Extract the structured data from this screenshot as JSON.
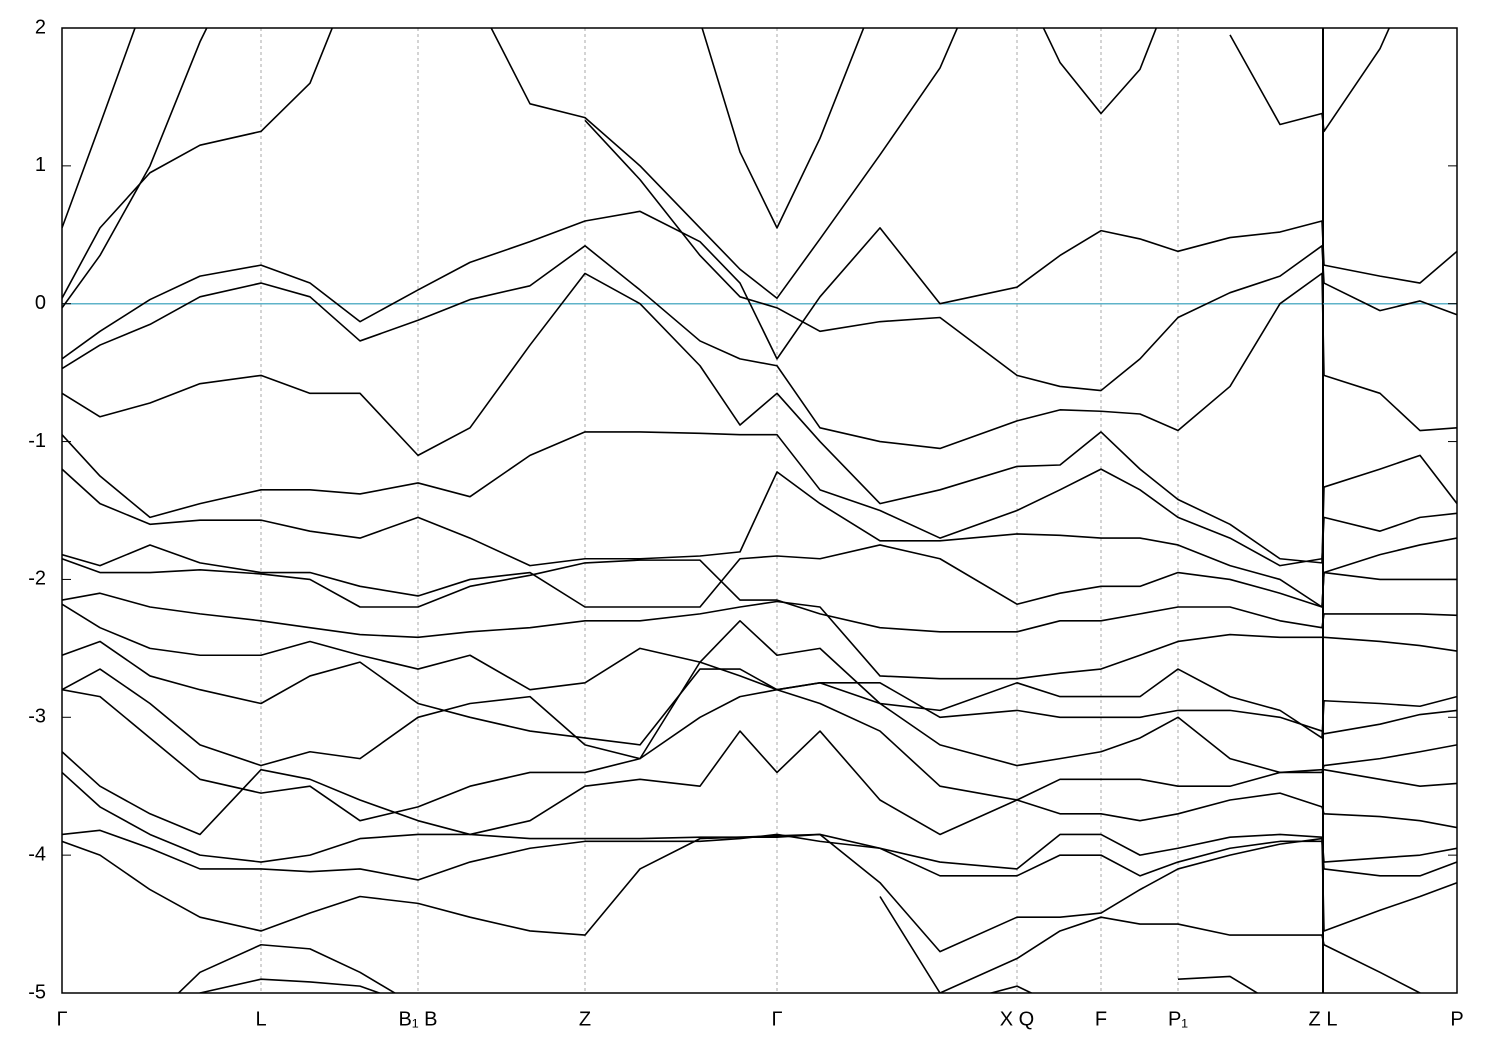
{
  "chart_data": {
    "type": "line",
    "x": [
      0,
      0.38,
      0.88,
      1.38,
      1.99,
      2.48,
      2.98,
      3.56,
      4.08,
      4.68,
      5.23,
      5.78,
      6.38,
      6.78,
      7.15,
      7.58,
      8.18,
      8.78,
      9.55,
      9.98,
      10.39,
      10.78,
      11.16,
      11.68,
      12.18,
      12.6,
      12.62,
      13.18,
      13.58,
      13.95
    ],
    "xlim": [
      0,
      13.95
    ],
    "xticks": [
      {
        "value": 0,
        "label": "Γ"
      },
      {
        "value": 1.99,
        "label": "L"
      },
      {
        "value": 3.56,
        "label": "B₁ B"
      },
      {
        "value": 5.23,
        "label": "Z"
      },
      {
        "value": 7.15,
        "label": "Γ"
      },
      {
        "value": 9.55,
        "label": "X Q"
      },
      {
        "value": 10.39,
        "label": "F"
      },
      {
        "value": 11.16,
        "label": "P₁"
      },
      {
        "value": 12.61,
        "label": "Z L",
        "line": "solid"
      },
      {
        "value": 13.95,
        "label": "P"
      }
    ],
    "ylim": [
      -5,
      2
    ],
    "yticks": [
      -5,
      -4,
      -3,
      -2,
      -1,
      0,
      1,
      2
    ],
    "grid": true,
    "fermi_level": 0,
    "fermi_color": "#5fb3c9",
    "series": [
      {
        "color": "#000000",
        "values": [
          0.55,
          1.3,
          2.3,
          null,
          null,
          null,
          null,
          null,
          2.3,
          1.45,
          1.35,
          1.0,
          0.55,
          0.25,
          0.04,
          0.47,
          1.08,
          1.71,
          3.0,
          null,
          null,
          null,
          null,
          null,
          null,
          null,
          null,
          null,
          null,
          null
        ]
      },
      {
        "color": "#000000",
        "values": [
          null,
          null,
          null,
          null,
          null,
          null,
          null,
          null,
          null,
          null,
          null,
          null,
          2.05,
          1.1,
          0.55,
          1.2,
          2.3,
          null,
          2.4,
          1.75,
          1.38,
          1.7,
          2.4,
          null,
          null,
          null,
          null,
          null,
          null,
          null
        ]
      },
      {
        "color": "#000000",
        "values": [
          0.04,
          0.55,
          0.95,
          1.15,
          1.25,
          1.6,
          2.5,
          null,
          null,
          null,
          null,
          null,
          null,
          null,
          null,
          null,
          null,
          null,
          null,
          null,
          null,
          null,
          null,
          1.95,
          1.3,
          1.38,
          1.25,
          1.85,
          2.5,
          null
        ]
      },
      {
        "color": "#000000",
        "values": [
          -0.03,
          0.35,
          1.0,
          1.9,
          2.8,
          null,
          null,
          null,
          null,
          null,
          1.33,
          0.9,
          0.35,
          0.05,
          -0.03,
          -0.2,
          -0.13,
          -0.1,
          -0.52,
          -0.6,
          -0.63,
          -0.4,
          -0.1,
          0.08,
          0.2,
          0.42,
          0.15,
          -0.05,
          0.02,
          -0.08
        ]
      },
      {
        "color": "#000000",
        "values": [
          -0.4,
          -0.2,
          0.03,
          0.2,
          0.28,
          0.15,
          -0.13,
          0.1,
          0.3,
          0.45,
          0.6,
          0.67,
          0.45,
          0.15,
          -0.4,
          0.05,
          0.55,
          0.0,
          0.12,
          0.35,
          0.53,
          0.47,
          0.38,
          0.48,
          0.52,
          0.6,
          0.28,
          0.2,
          0.15,
          0.38
        ]
      },
      {
        "color": "#000000",
        "values": [
          -0.47,
          -0.3,
          -0.15,
          0.05,
          0.15,
          0.05,
          -0.27,
          -0.12,
          0.03,
          0.13,
          0.42,
          0.1,
          -0.27,
          -0.4,
          -0.45,
          -0.9,
          -1.0,
          -1.05,
          -0.85,
          -0.77,
          -0.78,
          -0.8,
          -0.92,
          -0.6,
          0.0,
          0.22,
          -0.52,
          -0.65,
          -0.92,
          -0.9
        ]
      },
      {
        "color": "#000000",
        "values": [
          -0.65,
          -0.82,
          -0.72,
          -0.58,
          -0.52,
          -0.65,
          -0.65,
          -1.1,
          -0.9,
          -0.3,
          0.22,
          0.0,
          -0.45,
          -0.88,
          -0.65,
          -1.0,
          -1.45,
          -1.35,
          -1.18,
          -1.17,
          -0.93,
          -1.2,
          -1.42,
          -1.6,
          -1.85,
          -1.88,
          -1.33,
          -1.2,
          -1.1,
          -1.45
        ]
      },
      {
        "color": "#000000",
        "values": [
          -0.95,
          -1.25,
          -1.55,
          -1.45,
          -1.35,
          -1.35,
          -1.38,
          -1.3,
          -1.4,
          -1.1,
          -0.93,
          -0.93,
          -0.94,
          -0.95,
          -0.95,
          -1.35,
          -1.5,
          -1.7,
          -1.5,
          -1.35,
          -1.2,
          -1.35,
          -1.55,
          -1.7,
          -1.9,
          -1.85,
          -1.55,
          -1.65,
          -1.55,
          -1.52
        ]
      },
      {
        "color": "#000000",
        "values": [
          -1.2,
          -1.45,
          -1.6,
          -1.57,
          -1.57,
          -1.65,
          -1.7,
          -1.55,
          -1.7,
          -1.9,
          -1.85,
          -1.85,
          -1.83,
          -1.8,
          -1.22,
          -1.45,
          -1.72,
          -1.72,
          -1.67,
          -1.68,
          -1.7,
          -1.7,
          -1.75,
          -1.9,
          -2.0,
          -2.2,
          -1.95,
          -1.82,
          -1.75,
          -1.7
        ]
      },
      {
        "color": "#000000",
        "values": [
          -1.82,
          -1.9,
          -1.75,
          -1.88,
          -1.95,
          -1.95,
          -2.05,
          -2.12,
          -2.0,
          -1.95,
          -2.2,
          -2.2,
          -2.2,
          -1.85,
          -1.83,
          -1.85,
          -1.75,
          -1.85,
          -2.18,
          -2.1,
          -2.05,
          -2.05,
          -1.95,
          -2.0,
          -2.1,
          -2.2,
          -1.95,
          -2.0,
          -2.0,
          -2.0
        ]
      },
      {
        "color": "#000000",
        "values": [
          -1.85,
          -1.95,
          -1.95,
          -1.93,
          -1.96,
          -2.0,
          -2.2,
          -2.2,
          -2.05,
          -1.97,
          -1.88,
          -1.86,
          -1.86,
          -2.15,
          -2.15,
          -2.25,
          -2.35,
          -2.38,
          -2.38,
          -2.3,
          -2.3,
          -2.25,
          -2.2,
          -2.2,
          -2.3,
          -2.35,
          -2.25,
          -2.25,
          -2.25,
          -2.26
        ]
      },
      {
        "color": "#000000",
        "values": [
          -2.15,
          -2.1,
          -2.2,
          -2.25,
          -2.3,
          -2.35,
          -2.4,
          -2.42,
          -2.38,
          -2.35,
          -2.3,
          -2.3,
          -2.25,
          -2.2,
          -2.16,
          -2.2,
          -2.7,
          -2.72,
          -2.72,
          -2.68,
          -2.65,
          -2.55,
          -2.45,
          -2.4,
          -2.42,
          -2.42,
          -2.42,
          -2.45,
          -2.48,
          -2.52
        ]
      },
      {
        "color": "#000000",
        "values": [
          -2.18,
          -2.35,
          -2.5,
          -2.55,
          -2.55,
          -2.45,
          -2.55,
          -2.65,
          -2.55,
          -2.8,
          -2.75,
          -2.5,
          -2.6,
          -2.3,
          -2.55,
          -2.5,
          -2.9,
          -2.95,
          -2.75,
          -2.85,
          -2.85,
          -2.85,
          -2.65,
          -2.85,
          -2.95,
          -3.15,
          -2.88,
          -2.9,
          -2.92,
          -2.85
        ]
      },
      {
        "color": "#000000",
        "values": [
          -2.55,
          -2.45,
          -2.7,
          -2.8,
          -2.9,
          -2.7,
          -2.6,
          -2.9,
          -3.0,
          -3.1,
          -3.15,
          -3.2,
          -2.65,
          -2.65,
          -2.8,
          -2.75,
          -2.75,
          -3.0,
          -2.95,
          -3.0,
          -3.0,
          -3.0,
          -2.95,
          -2.95,
          -3.0,
          -3.1,
          -3.12,
          -3.05,
          -2.98,
          -2.95
        ]
      },
      {
        "color": "#000000",
        "values": [
          -2.8,
          -2.65,
          -2.9,
          -3.2,
          -3.35,
          -3.25,
          -3.3,
          -3.0,
          -2.9,
          -2.85,
          -3.2,
          -3.3,
          -2.6,
          -2.7,
          -2.8,
          -2.75,
          -2.9,
          -3.2,
          -3.35,
          -3.3,
          -3.25,
          -3.15,
          -3.0,
          -3.3,
          -3.4,
          -3.4,
          -3.35,
          -3.3,
          -3.25,
          -3.2
        ]
      },
      {
        "color": "#000000",
        "values": [
          -2.8,
          -2.85,
          -3.15,
          -3.45,
          -3.55,
          -3.5,
          -3.75,
          -3.65,
          -3.5,
          -3.4,
          -3.4,
          -3.3,
          -3.0,
          -2.85,
          -2.8,
          -2.9,
          -3.1,
          -3.5,
          -3.6,
          -3.45,
          -3.45,
          -3.45,
          -3.5,
          -3.5,
          -3.4,
          -3.38,
          -3.38,
          -3.45,
          -3.5,
          -3.48
        ]
      },
      {
        "color": "#000000",
        "values": [
          -3.25,
          -3.5,
          -3.7,
          -3.85,
          -3.38,
          -3.45,
          -3.6,
          -3.75,
          -3.85,
          -3.75,
          -3.5,
          -3.45,
          -3.5,
          -3.1,
          -3.4,
          -3.1,
          -3.6,
          -3.85,
          -3.6,
          -3.7,
          -3.7,
          -3.75,
          -3.7,
          -3.6,
          -3.55,
          -3.65,
          -3.7,
          -3.72,
          -3.75,
          -3.8
        ]
      },
      {
        "color": "#000000",
        "values": [
          -3.4,
          -3.65,
          -3.85,
          -4.0,
          -4.05,
          -4.0,
          -3.88,
          -3.85,
          -3.85,
          -3.88,
          -3.88,
          -3.88,
          -3.87,
          -3.87,
          -3.87,
          -3.85,
          -3.95,
          -4.05,
          -4.1,
          -3.85,
          -3.85,
          -4.0,
          -3.95,
          -3.87,
          -3.85,
          -3.87,
          -4.05,
          -4.02,
          -4.0,
          -3.95
        ]
      },
      {
        "color": "#000000",
        "values": [
          -3.85,
          -3.82,
          -3.95,
          -4.1,
          -4.1,
          -4.12,
          -4.1,
          -4.18,
          -4.05,
          -3.95,
          -3.9,
          -3.9,
          -3.9,
          -3.88,
          -3.85,
          -3.9,
          -3.95,
          -4.15,
          -4.15,
          -4.0,
          -4.0,
          -4.15,
          -4.05,
          -3.95,
          -3.9,
          -3.9,
          -4.1,
          -4.15,
          -4.15,
          -4.05
        ]
      },
      {
        "color": "#000000",
        "values": [
          -3.9,
          -4.0,
          -4.25,
          -4.45,
          -4.55,
          -4.42,
          -4.3,
          -4.35,
          -4.45,
          -4.55,
          -4.58,
          -4.1,
          -3.88,
          -3.87,
          -3.86,
          -3.85,
          -4.2,
          -4.7,
          -4.45,
          -4.45,
          -4.42,
          -4.25,
          -4.1,
          -4.0,
          -3.92,
          -3.88,
          -4.55,
          -4.4,
          -4.3,
          -4.2
        ]
      },
      {
        "color": "#000000",
        "values": [
          -5.5,
          -5.4,
          -5.2,
          -4.85,
          -4.65,
          -4.68,
          -4.85,
          -5.1,
          null,
          null,
          null,
          null,
          null,
          null,
          null,
          null,
          -4.3,
          -5.0,
          -4.75,
          -4.55,
          -4.45,
          -4.5,
          -4.5,
          -4.58,
          -4.58,
          -4.58,
          -4.65,
          -4.85,
          -5.0,
          -5.1
        ]
      },
      {
        "color": "#000000",
        "values": [
          null,
          null,
          -5.3,
          -5.0,
          -4.9,
          -4.92,
          -4.95,
          -5.1,
          null,
          null,
          null,
          null,
          null,
          null,
          null,
          null,
          null,
          -5.1,
          -4.95,
          -5.1,
          null,
          null,
          -4.9,
          -4.88,
          -5.1,
          null,
          null,
          null,
          null,
          null
        ]
      }
    ]
  }
}
